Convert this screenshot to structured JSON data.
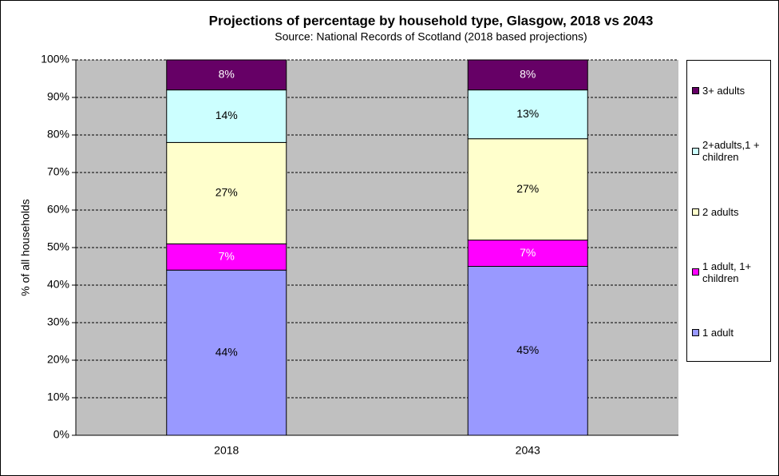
{
  "chart_data": {
    "type": "stacked_bar",
    "title": "Projections of percentage by household type, Glasgow,  2018 vs 2043",
    "subtitle": "Source: National Records of Scotland (2018 based projections)",
    "y_label": "% of all households",
    "categories": [
      "2018",
      "2043"
    ],
    "series": [
      {
        "name": "1 adult",
        "color": "#9999ff",
        "values": [
          44,
          45
        ],
        "value_labels": [
          "44%",
          "45%"
        ]
      },
      {
        "name": "1 adult, 1+ children",
        "color": "#ff00ff",
        "values": [
          7,
          7
        ],
        "value_labels": [
          "7%",
          "7%"
        ]
      },
      {
        "name": "2 adults",
        "color": "#ffffcc",
        "values": [
          27,
          27
        ],
        "value_labels": [
          "27%",
          "27%"
        ]
      },
      {
        "name": "2+adults,1 + children",
        "color": "#ccffff",
        "values": [
          14,
          13
        ],
        "value_labels": [
          "14%",
          "13%"
        ]
      },
      {
        "name": "3+ adults",
        "color": "#660066",
        "values": [
          8,
          8
        ],
        "value_labels": [
          "8%",
          "8%"
        ]
      }
    ],
    "ylim": [
      0,
      100
    ],
    "yticks": [
      {
        "value": 0,
        "label": "0%"
      },
      {
        "value": 10,
        "label": "10%"
      },
      {
        "value": 20,
        "label": "20%"
      },
      {
        "value": 30,
        "label": "30%"
      },
      {
        "value": 40,
        "label": "40%"
      },
      {
        "value": 50,
        "label": "50%"
      },
      {
        "value": 60,
        "label": "60%"
      },
      {
        "value": 70,
        "label": "70%"
      },
      {
        "value": 80,
        "label": "80%"
      },
      {
        "value": 90,
        "label": "90%"
      },
      {
        "value": 100,
        "label": "100%"
      }
    ],
    "grid": true,
    "legend": "right"
  }
}
